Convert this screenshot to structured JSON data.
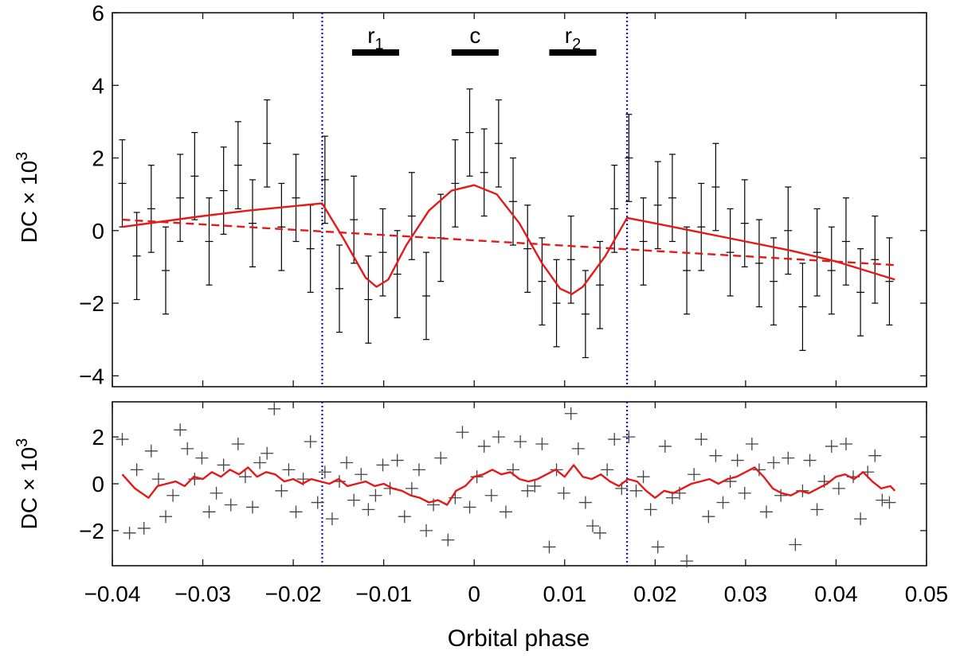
{
  "chart_data": [
    {
      "type": "scatter",
      "panel": "top",
      "ylabel": "DC × 10",
      "ylabel_exp": "3",
      "xlim": [
        -0.04,
        0.05
      ],
      "ylim": [
        -4.3,
        6
      ],
      "xticks": [
        -0.04,
        -0.03,
        -0.02,
        -0.01,
        0,
        0.01,
        0.02,
        0.03,
        0.04,
        0.05
      ],
      "yticks": [
        -4,
        -2,
        0,
        2,
        4,
        6
      ],
      "ytick_labels": [
        "−4",
        "−2",
        "0",
        "2",
        "4",
        "6"
      ],
      "grid": false,
      "vlines": [
        -0.0168,
        0.0169
      ],
      "vline_color": "#1010d0",
      "annotations": [
        {
          "label": "r",
          "sub": "1",
          "x0": -0.0135,
          "x1": -0.0083
        },
        {
          "label": "c",
          "sub": "",
          "x0": -0.0025,
          "x1": 0.0027
        },
        {
          "label": "r",
          "sub": "2",
          "x0": 0.0083,
          "x1": 0.0135
        }
      ],
      "errorbar_half_width": 1.2,
      "series": [
        {
          "style": "errorbars",
          "color": "#000000",
          "x": [
            -0.0389,
            -0.0373,
            -0.0357,
            -0.0341,
            -0.0325,
            -0.0309,
            -0.0293,
            -0.0277,
            -0.0261,
            -0.0245,
            -0.0229,
            -0.0213,
            -0.0197,
            -0.0181,
            -0.0165,
            -0.0149,
            -0.0133,
            -0.0117,
            -0.0101,
            -0.0085,
            -0.0069,
            -0.0053,
            -0.0037,
            -0.0021,
            -0.0005,
            0.0011,
            0.0027,
            0.0043,
            0.0059,
            0.0075,
            0.0091,
            0.0107,
            0.0123,
            0.0139,
            0.0155,
            0.0171,
            0.0187,
            0.0203,
            0.0219,
            0.0235,
            0.0251,
            0.0267,
            0.0283,
            0.0299,
            0.0315,
            0.0331,
            0.0347,
            0.0363,
            0.0379,
            0.0395,
            0.0411,
            0.0427,
            0.0443,
            0.0459
          ],
          "y": [
            1.3,
            -0.7,
            0.6,
            -1.1,
            0.9,
            1.5,
            -0.3,
            1.1,
            1.8,
            0.2,
            2.4,
            0.1,
            0.9,
            -0.5,
            1.4,
            -1.6,
            0.3,
            -1.9,
            -0.6,
            -1.2,
            0.4,
            -1.8,
            -0.2,
            1.3,
            2.7,
            1.6,
            2.4,
            0.8,
            -0.5,
            -1.4,
            -2.0,
            -0.8,
            -2.3,
            -1.5,
            0.6,
            2.0,
            -0.3,
            0.7,
            0.9,
            -1.1,
            0.1,
            1.2,
            -0.6,
            0.2,
            -0.9,
            -1.4,
            0.0,
            -2.1,
            -0.6,
            -1.1,
            -0.3,
            -1.7,
            -0.8,
            -1.4
          ]
        },
        {
          "style": "line",
          "color": "#e41a1a",
          "x": [
            -0.0389,
            -0.03,
            -0.025,
            -0.0168,
            -0.0145,
            -0.012,
            -0.0108,
            -0.0095,
            -0.0075,
            -0.005,
            -0.0025,
            0,
            0.0025,
            0.005,
            0.0075,
            0.0095,
            0.0108,
            0.012,
            0.0145,
            0.0169,
            0.02,
            0.025,
            0.03,
            0.035,
            0.04,
            0.0465
          ],
          "y": [
            0.1,
            0.4,
            0.55,
            0.75,
            -0.2,
            -1.3,
            -1.55,
            -1.35,
            -0.4,
            0.55,
            1.1,
            1.25,
            1.0,
            0.2,
            -0.9,
            -1.6,
            -1.75,
            -1.55,
            -0.7,
            0.35,
            0.2,
            -0.05,
            -0.3,
            -0.55,
            -0.85,
            -1.35
          ]
        },
        {
          "style": "dashed",
          "color": "#e41a1a",
          "x": [
            -0.0389,
            0.0465
          ],
          "y": [
            0.3,
            -0.95
          ]
        }
      ]
    },
    {
      "type": "scatter",
      "panel": "bottom",
      "xlabel": "Orbital phase",
      "ylabel": "DC × 10",
      "ylabel_exp": "3",
      "xlim": [
        -0.04,
        0.05
      ],
      "ylim": [
        -3.5,
        3.5
      ],
      "xticks": [
        -0.04,
        -0.03,
        -0.02,
        -0.01,
        0,
        0.01,
        0.02,
        0.03,
        0.04,
        0.05
      ],
      "xtick_labels": [
        "−0.04",
        "−0.03",
        "−0.02",
        "−0.01",
        "0",
        "0.01",
        "0.02",
        "0.03",
        "0.04",
        "0.05"
      ],
      "yticks": [
        -2,
        0,
        2
      ],
      "ytick_labels": [
        "−2",
        "0",
        "2"
      ],
      "grid": false,
      "vlines": [
        -0.0168,
        0.0169
      ],
      "series": [
        {
          "style": "crosses",
          "color": "#444444",
          "x": [
            -0.0389,
            -0.0381,
            -0.0373,
            -0.0365,
            -0.0357,
            -0.0349,
            -0.0341,
            -0.0333,
            -0.0325,
            -0.0317,
            -0.0309,
            -0.0301,
            -0.0293,
            -0.0285,
            -0.0277,
            -0.0269,
            -0.0261,
            -0.0253,
            -0.0245,
            -0.0237,
            -0.0229,
            -0.0221,
            -0.0213,
            -0.0205,
            -0.0197,
            -0.0189,
            -0.0181,
            -0.0173,
            -0.0165,
            -0.0157,
            -0.0149,
            -0.0141,
            -0.0133,
            -0.0125,
            -0.0117,
            -0.0109,
            -0.0101,
            -0.0093,
            -0.0085,
            -0.0077,
            -0.0069,
            -0.0061,
            -0.0053,
            -0.0045,
            -0.0037,
            -0.0029,
            -0.0021,
            -0.0013,
            -0.0005,
            0.0003,
            0.0011,
            0.0019,
            0.0027,
            0.0035,
            0.0043,
            0.0051,
            0.0059,
            0.0067,
            0.0075,
            0.0083,
            0.0091,
            0.0099,
            0.0107,
            0.0115,
            0.0123,
            0.0131,
            0.0139,
            0.0147,
            0.0155,
            0.0163,
            0.0171,
            0.0179,
            0.0187,
            0.0195,
            0.0203,
            0.0211,
            0.0219,
            0.0227,
            0.0235,
            0.0243,
            0.0251,
            0.0259,
            0.0267,
            0.0275,
            0.0283,
            0.0291,
            0.0299,
            0.0307,
            0.0315,
            0.0323,
            0.0331,
            0.0339,
            0.0347,
            0.0355,
            0.0363,
            0.0371,
            0.0379,
            0.0387,
            0.0395,
            0.0403,
            0.0411,
            0.0419,
            0.0427,
            0.0435,
            0.0443,
            0.0451,
            0.0459
          ],
          "y": [
            1.9,
            -2.1,
            0.6,
            -1.9,
            1.4,
            0.2,
            -1.4,
            -0.5,
            2.3,
            1.5,
            0.2,
            1.1,
            -1.2,
            -0.4,
            0.8,
            -0.9,
            1.7,
            0.3,
            -1.0,
            0.9,
            1.3,
            3.2,
            -0.3,
            0.6,
            -1.2,
            0.2,
            1.8,
            -0.8,
            0.5,
            -1.5,
            0.1,
            0.9,
            -0.7,
            0.4,
            -1.1,
            -0.5,
            0.8,
            -0.2,
            1.0,
            -1.4,
            -0.2,
            0.6,
            -2.0,
            -0.9,
            1.1,
            -2.4,
            -0.6,
            2.2,
            -1.0,
            0.3,
            1.6,
            -0.5,
            2.0,
            -1.2,
            0.6,
            1.8,
            -0.3,
            -0.1,
            1.7,
            -2.7,
            0.6,
            -0.4,
            3.0,
            1.5,
            -0.8,
            -1.8,
            -2.1,
            0.6,
            1.9,
            -0.2,
            2.0,
            -0.3,
            0.3,
            -1.1,
            -2.7,
            1.6,
            -0.6,
            -0.4,
            -3.3,
            0.4,
            1.9,
            -1.4,
            1.2,
            -0.8,
            0.1,
            1.0,
            -0.4,
            1.7,
            0.6,
            -1.2,
            0.9,
            -0.5,
            1.1,
            -2.6,
            -0.3,
            1.0,
            -1.1,
            0.1,
            1.6,
            -0.2,
            1.7,
            0.3,
            -1.5,
            0.5,
            1.2,
            -0.7,
            -0.8
          ]
        },
        {
          "style": "line",
          "color": "#e41a1a",
          "x": [
            -0.0389,
            -0.0375,
            -0.036,
            -0.035,
            -0.034,
            -0.033,
            -0.032,
            -0.031,
            -0.03,
            -0.029,
            -0.028,
            -0.027,
            -0.026,
            -0.025,
            -0.024,
            -0.023,
            -0.022,
            -0.021,
            -0.02,
            -0.019,
            -0.018,
            -0.017,
            -0.016,
            -0.015,
            -0.014,
            -0.013,
            -0.012,
            -0.011,
            -0.01,
            -0.009,
            -0.008,
            -0.007,
            -0.006,
            -0.005,
            -0.004,
            -0.003,
            -0.002,
            -0.001,
            0.0,
            0.001,
            0.002,
            0.003,
            0.004,
            0.005,
            0.006,
            0.007,
            0.008,
            0.009,
            0.01,
            0.011,
            0.012,
            0.013,
            0.014,
            0.015,
            0.016,
            0.017,
            0.018,
            0.019,
            0.02,
            0.021,
            0.022,
            0.023,
            0.024,
            0.025,
            0.026,
            0.027,
            0.028,
            0.029,
            0.03,
            0.031,
            0.032,
            0.033,
            0.034,
            0.035,
            0.036,
            0.037,
            0.038,
            0.039,
            0.04,
            0.041,
            0.042,
            0.043,
            0.044,
            0.045,
            0.046,
            0.0465
          ],
          "y": [
            0.4,
            -0.2,
            -0.6,
            -0.1,
            0.0,
            0.1,
            -0.1,
            0.3,
            0.2,
            0.5,
            0.3,
            0.6,
            0.4,
            0.7,
            0.3,
            0.5,
            0.4,
            0.1,
            0.2,
            0.0,
            0.2,
            0.1,
            0.0,
            0.2,
            -0.1,
            0.0,
            0.1,
            -0.1,
            0.0,
            -0.2,
            -0.3,
            -0.5,
            -0.6,
            -0.8,
            -0.7,
            -0.9,
            -0.3,
            -0.1,
            0.3,
            0.4,
            0.6,
            0.4,
            0.5,
            0.2,
            0.1,
            0.2,
            0.4,
            0.6,
            0.3,
            0.8,
            0.3,
            0.2,
            0.4,
            0.1,
            -0.1,
            0.2,
            0.1,
            -0.3,
            -0.6,
            -0.3,
            -0.4,
            -0.2,
            0.0,
            0.1,
            0.2,
            0.0,
            0.2,
            0.3,
            0.5,
            0.7,
            0.3,
            -0.2,
            -0.4,
            -0.5,
            -0.3,
            -0.4,
            -0.2,
            0.0,
            0.3,
            0.4,
            0.2,
            0.5,
            0.1,
            -0.2,
            -0.1,
            -0.3
          ]
        }
      ]
    }
  ]
}
